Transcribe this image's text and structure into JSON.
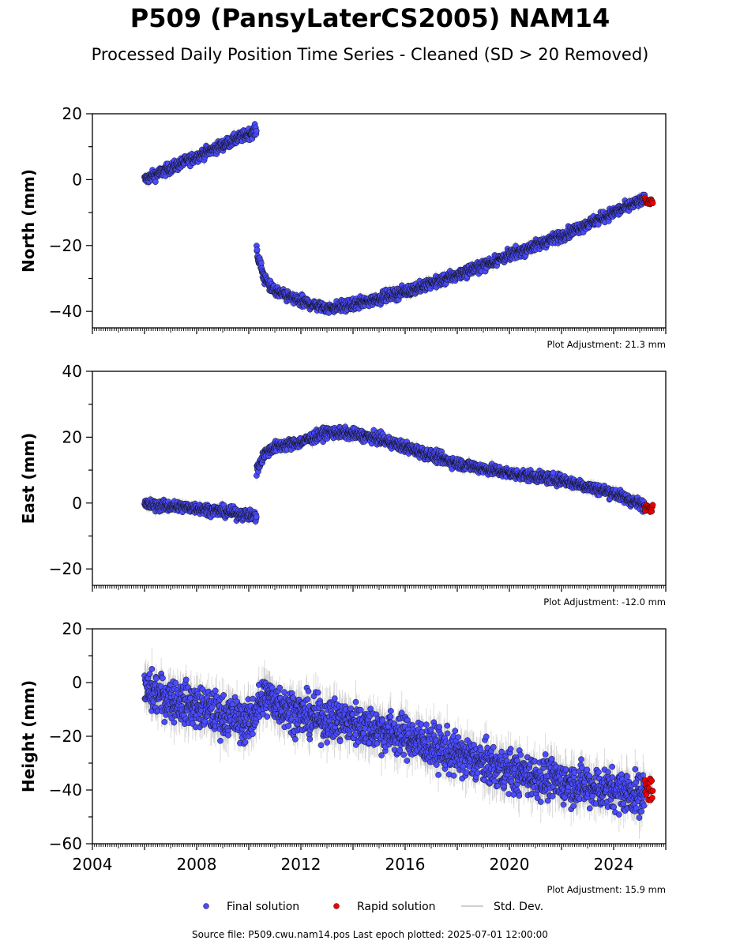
{
  "title": "P509 (PansyLaterCS2005) NAM14",
  "subtitle": "Processed Daily Position Time Series - Cleaned (SD > 20 Removed)",
  "source_text": "Source file: P509.cwu.nam14.pos  Last epoch plotted: 2025-07-01 12:00:00",
  "colors": {
    "final": "#4b4bff",
    "rapid": "#ee0000",
    "stddev": "#b0b0b0",
    "edge": "#111111"
  },
  "legend": {
    "final": "Final solution",
    "rapid": "Rapid solution",
    "stddev": "Std. Dev.",
    "placement": "bottom-center"
  },
  "chart_data": [
    {
      "type": "scatter",
      "ylabel": "North (mm)",
      "xlim": [
        2004,
        2026
      ],
      "ylim": [
        -45,
        20
      ],
      "yticks": [
        20,
        0,
        -20,
        -40
      ],
      "adjustment": "Plot Adjustment: 21.3 mm",
      "series": [
        {
          "name": "Final solution",
          "segments": [
            {
              "x": [
                2006.0,
                2008.0,
                2010.3
              ],
              "y": [
                0,
                7,
                15
              ],
              "spread": 1.5
            },
            {
              "x": [
                2010.3,
                2010.6,
                2011.0,
                2012.0,
                2013.0,
                2014.0,
                2016.0,
                2018.0,
                2020.0,
                2022.0,
                2024.0,
                2025.2
              ],
              "y": [
                -22,
                -30,
                -34,
                -37,
                -39,
                -38,
                -34,
                -29,
                -23,
                -17,
                -10,
                -6
              ],
              "spread": 1.5
            }
          ]
        },
        {
          "name": "Rapid solution",
          "x": [
            2025.2,
            2025.5
          ],
          "y": [
            -6.5,
            -6.5
          ],
          "spread": 1.0
        }
      ]
    },
    {
      "type": "scatter",
      "ylabel": "East (mm)",
      "xlim": [
        2004,
        2026
      ],
      "ylim": [
        -25,
        40
      ],
      "yticks": [
        40,
        20,
        0,
        -20
      ],
      "adjustment": "Plot Adjustment: -12.0 mm",
      "series": [
        {
          "name": "Final solution",
          "segments": [
            {
              "x": [
                2006.0,
                2008.0,
                2010.3
              ],
              "y": [
                -0.5,
                -1.5,
                -4
              ],
              "spread": 1.5
            },
            {
              "x": [
                2010.3,
                2010.6,
                2011.0,
                2012.0,
                2013.0,
                2014.0,
                2015.0,
                2016.0,
                2018.0,
                2020.0,
                2022.0,
                2024.0,
                2025.2
              ],
              "y": [
                10,
                15,
                17,
                18.5,
                21.5,
                21,
                19.5,
                17,
                12,
                9,
                7,
                3,
                -1
              ],
              "spread": 1.5
            }
          ]
        },
        {
          "name": "Rapid solution",
          "x": [
            2025.2,
            2025.5
          ],
          "y": [
            -1.5,
            -1.5
          ],
          "spread": 1.0
        }
      ]
    },
    {
      "type": "scatter",
      "ylabel": "Height (mm)",
      "xlim": [
        2004,
        2026
      ],
      "ylim": [
        -60,
        20
      ],
      "yticks": [
        20,
        0,
        -20,
        -40,
        -60
      ],
      "xticks": [
        2004,
        2008,
        2012,
        2016,
        2020,
        2024
      ],
      "adjustment": "Plot Adjustment: 15.9 mm",
      "series": [
        {
          "name": "Final solution",
          "segments": [
            {
              "x": [
                2006.0,
                2008.0,
                2010.0,
                2010.6,
                2012.0,
                2014.0,
                2016.0,
                2018.0,
                2020.0,
                2022.0,
                2024.0,
                2025.2
              ],
              "y": [
                -3,
                -9,
                -15,
                -5,
                -12,
                -15,
                -20,
                -27,
                -33,
                -37,
                -40,
                -42
              ],
              "spread": 7
            }
          ]
        },
        {
          "name": "Rapid solution",
          "x": [
            2025.2,
            2025.5
          ],
          "y": [
            -40,
            -40
          ],
          "spread": 4
        }
      ]
    }
  ]
}
